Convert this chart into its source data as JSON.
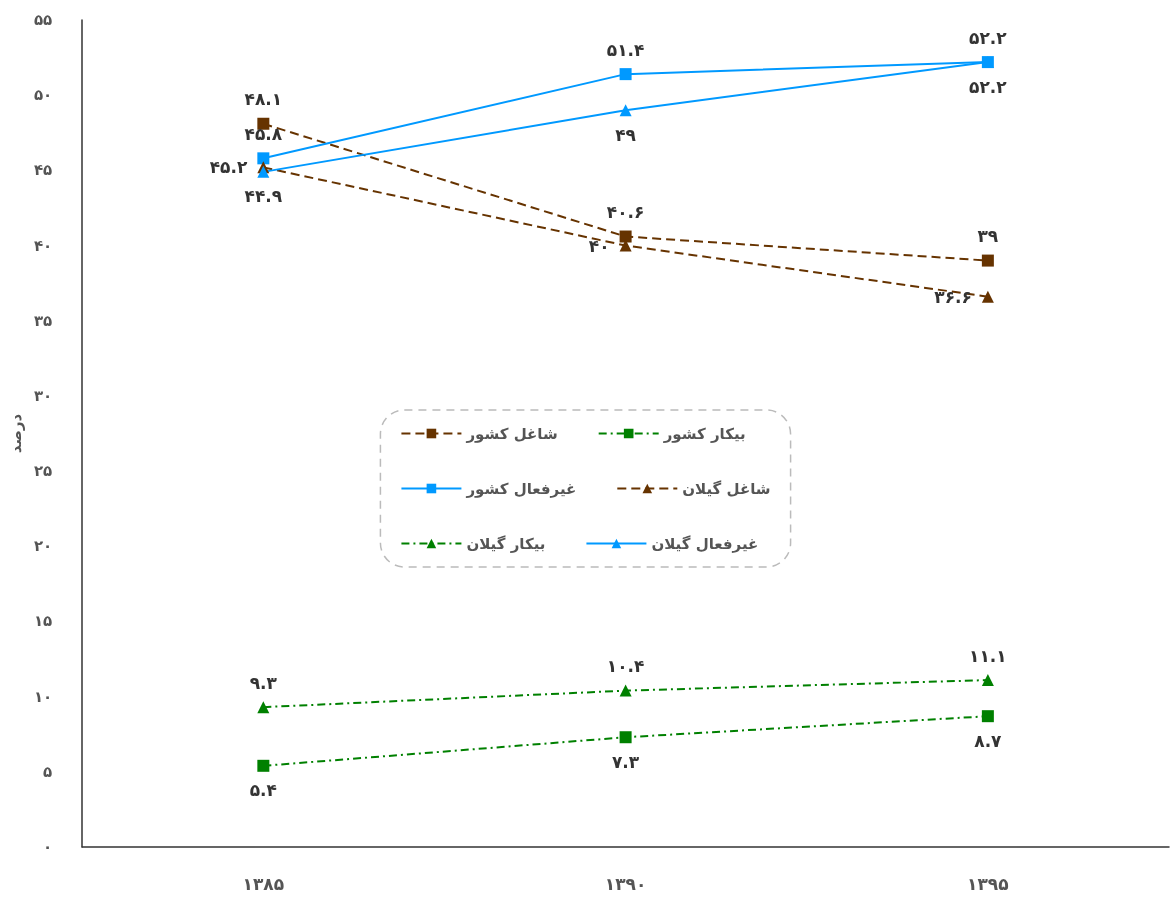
{
  "chart_data": {
    "type": "line",
    "ylabel": "درصد",
    "categories": [
      "۱۳۸۵",
      "۱۳۹۰",
      "۱۳۹۵"
    ],
    "ylim": [
      0,
      55
    ],
    "yticks": [
      {
        "value": 0,
        "label": "۰"
      },
      {
        "value": 5,
        "label": "۵"
      },
      {
        "value": 10,
        "label": "۱۰"
      },
      {
        "value": 15,
        "label": "۱۵"
      },
      {
        "value": 20,
        "label": "۲۰"
      },
      {
        "value": 25,
        "label": "۲۵"
      },
      {
        "value": 30,
        "label": "۳۰"
      },
      {
        "value": 35,
        "label": "۳۵"
      },
      {
        "value": 40,
        "label": "۴۰"
      },
      {
        "value": 45,
        "label": "۴۵"
      },
      {
        "value": 50,
        "label": "۵۰"
      },
      {
        "value": 55,
        "label": "۵۵"
      }
    ],
    "grid": false,
    "legend": "center",
    "series": [
      {
        "name": "شاغل کشور",
        "color": "#663300",
        "marker": "square",
        "line_style": "dashed",
        "values": [
          48.1,
          40.6,
          39
        ],
        "value_labels": [
          "۴۸.۱",
          "۴۰.۶",
          "۳۹"
        ]
      },
      {
        "name": "بیکار کشور",
        "color": "#008000",
        "marker": "square",
        "line_style": "dashdot",
        "values": [
          5.4,
          7.3,
          8.7
        ],
        "value_labels": [
          "۵.۴",
          "۷.۳",
          "۸.۷"
        ]
      },
      {
        "name": "غیرفعال کشور",
        "color": "#0099ff",
        "marker": "square",
        "line_style": "solid",
        "values": [
          45.8,
          51.4,
          52.2
        ],
        "value_labels": [
          "۴۵.۸",
          "۵۱.۴",
          "۵۲.۲"
        ]
      },
      {
        "name": "شاغل گیلان",
        "color": "#663300",
        "marker": "triangle",
        "line_style": "dashed",
        "values": [
          45.2,
          40,
          36.6
        ],
        "value_labels": [
          "۴۵.۲",
          "۴۰",
          "۳۶.۶"
        ]
      },
      {
        "name": "بیکار گیلان",
        "color": "#008000",
        "marker": "triangle",
        "line_style": "dashdot",
        "values": [
          9.3,
          10.4,
          11.1
        ],
        "value_labels": [
          "۹.۳",
          "۱۰.۴",
          "۱۱.۱"
        ]
      },
      {
        "name": "غیرفعال گیلان",
        "color": "#0099ff",
        "marker": "triangle",
        "line_style": "solid",
        "values": [
          44.9,
          49,
          52.2
        ],
        "value_labels": [
          "۴۴.۹",
          "۴۹",
          "۵۲.۲"
        ]
      }
    ]
  }
}
